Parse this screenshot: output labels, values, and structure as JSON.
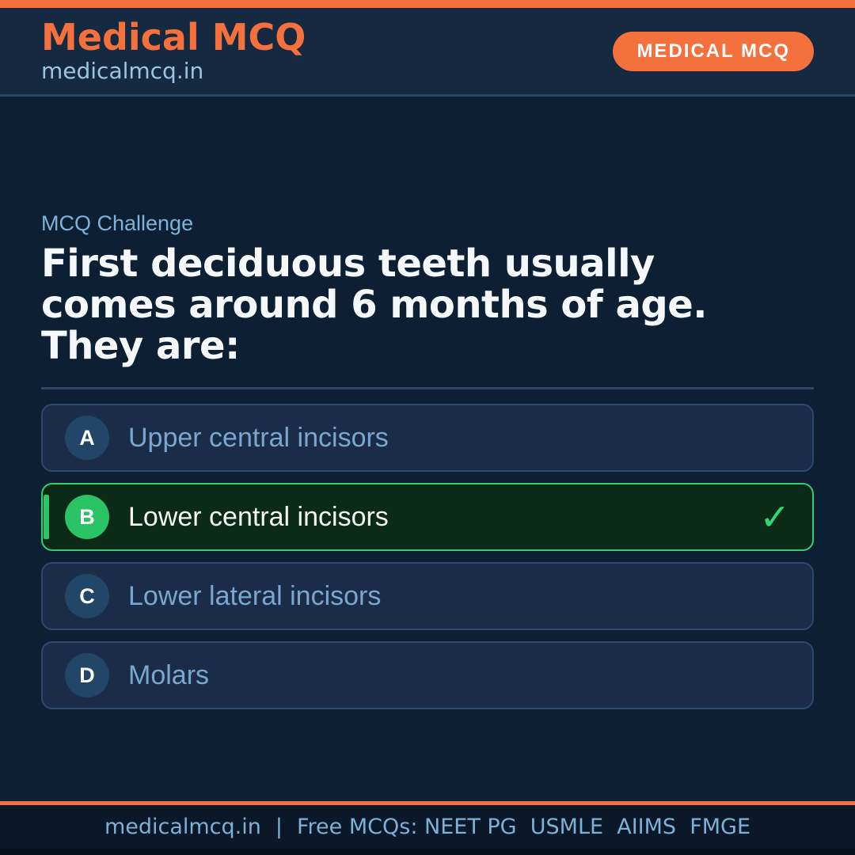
{
  "header": {
    "title": "Medical MCQ",
    "subtitle": "medicalmcq.in",
    "badge": "MEDICAL MCQ"
  },
  "question": {
    "eyebrow": "MCQ Challenge",
    "text": "First deciduous teeth usually comes around 6 months of age. They are:",
    "lines": [
      "First deciduous teeth usually",
      "comes around 6 months of age.",
      "They are:"
    ]
  },
  "options": [
    {
      "letter": "A",
      "text": "Upper central incisors",
      "correct": false
    },
    {
      "letter": "B",
      "text": "Lower central incisors",
      "correct": true
    },
    {
      "letter": "C",
      "text": "Lower lateral incisors",
      "correct": false
    },
    {
      "letter": "D",
      "text": "Molars",
      "correct": false
    }
  ],
  "icons": {
    "check": "✓"
  },
  "footer": {
    "site": "medicalmcq.in",
    "separator": "|",
    "tagline": "Free MCQs: NEET PG  USMLE  AIIMS  FMGE"
  },
  "colors": {
    "accent_orange": "#f4703d",
    "header_bg": "#152a40",
    "page_bg": "#0d1f33",
    "option_bg": "#1a2c47",
    "option_border": "#2d4a6e",
    "correct_bg": "#0c2a18",
    "correct_border": "#2fcf6e",
    "correct_circle": "#2ac365",
    "check_green": "#2fd970",
    "option_text": "#7aa7cf",
    "muted_blue": "#7fb2d8",
    "question_text": "#f5f8fb",
    "footer_bg": "#0a1829"
  }
}
